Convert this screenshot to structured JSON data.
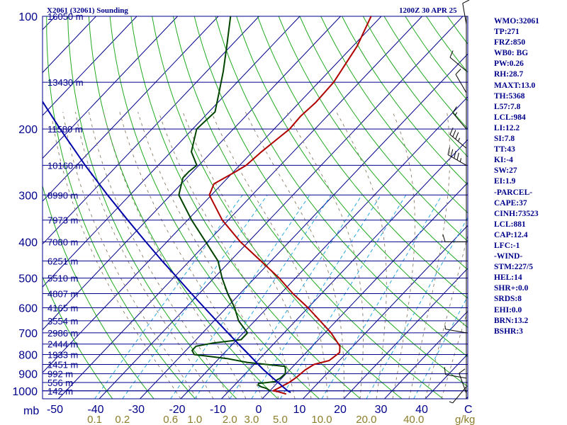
{
  "header": {
    "station": "X2061 (32061) Sounding",
    "time": "1200Z 30 APR 25"
  },
  "indices": [
    "WMO:32061",
    "TP:271",
    "FRZ:850",
    "WB0: BG",
    "PW:0.26",
    "RH:28.7",
    "MAXT:13.0",
    "TH:5368",
    "L57:7.8",
    "LCL:984",
    "LI:12.2",
    "SI:7.8",
    "TT:43",
    "KI:-4",
    "SW:27",
    "EI:1.9",
    "-PARCEL-",
    "CAPE:37",
    "CINH:73523",
    "LCL:881",
    "CAP:12.4",
    "LFC:-1",
    "-WIND-",
    "STM:227/5",
    "HEL:14",
    "SHR+:0.0",
    "SRDS:8",
    "EHI:0.0",
    "BRN:13.2",
    "BSHR:3"
  ],
  "colors": {
    "isobar": "#00008b",
    "isotherm": "#00008b",
    "dry_adiabat": "#22aa22",
    "moist_adiabat": "#8b7d6b",
    "mixing_ratio": "#2ba8e0",
    "temperature": "#b00000",
    "dewpoint": "#004400",
    "parcel": "#0000aa",
    "wind": "#000000"
  },
  "chart_data": {
    "type": "skew-t",
    "pressure_axis_label": "mb",
    "pressure_ticks": [
      100,
      200,
      300,
      400,
      500,
      600,
      700,
      800,
      900,
      1000
    ],
    "height_labels": [
      {
        "p": 100,
        "text": "16050 m"
      },
      {
        "p": 150,
        "text": "13430 m"
      },
      {
        "p": 200,
        "text": "11580 m"
      },
      {
        "p": 250,
        "text": "10160 m"
      },
      {
        "p": 300,
        "text": "8990 m"
      },
      {
        "p": 350,
        "text": "7973 m"
      },
      {
        "p": 400,
        "text": "7080 m"
      },
      {
        "p": 450,
        "text": "6251 m"
      },
      {
        "p": 500,
        "text": "5510 m"
      },
      {
        "p": 550,
        "text": "4807 m"
      },
      {
        "p": 600,
        "text": "4165 m"
      },
      {
        "p": 650,
        "text": "3554 m"
      },
      {
        "p": 700,
        "text": "2986 m"
      },
      {
        "p": 750,
        "text": "2444 m"
      },
      {
        "p": 800,
        "text": "1933 m"
      },
      {
        "p": 850,
        "text": "1451 m"
      },
      {
        "p": 900,
        "text": "992 m"
      },
      {
        "p": 950,
        "text": "556 m"
      },
      {
        "p": 1000,
        "text": "142 m"
      }
    ],
    "temperature_ticks": [
      -50,
      -40,
      -30,
      -20,
      -10,
      0,
      10,
      20,
      30,
      40
    ],
    "temperature_end_label": "C",
    "mixing_ratio_ticks": [
      0.1,
      0.2,
      0.6,
      1.0,
      2.0,
      3.0,
      5.0,
      10.0,
      20.0,
      40.0
    ],
    "mixing_ratio_labels": [
      "0.1",
      "0.2",
      "0.6",
      "1.0",
      "2.0",
      "3.0",
      "5.0",
      "10.0",
      "20.0",
      "40.0"
    ],
    "mixing_ratio_unit": "g/kg",
    "series": [
      {
        "key": "temperature",
        "p": [
          1020,
          1005,
          1000,
          988,
          950,
          920,
          880,
          850,
          830,
          790,
          760,
          700,
          650,
          600,
          550,
          500,
          450,
          400,
          350,
          300,
          280,
          260,
          250,
          230,
          200,
          185,
          170,
          150,
          120,
          100
        ],
        "t": [
          4.8,
          2.2,
          0.8,
          1.3,
          2.8,
          3.4,
          3.8,
          4.7,
          7.5,
          8.2,
          6.8,
          1.5,
          -4.0,
          -10.0,
          -17.0,
          -24.0,
          -32.5,
          -42.0,
          -51.5,
          -60.5,
          -62.0,
          -59.5,
          -58.4,
          -57.8,
          -56.2,
          -56.5,
          -56.0,
          -56.3,
          -59.0,
          -62.5
        ]
      },
      {
        "key": "dewpoint",
        "p": [
          1000,
          985,
          975,
          965,
          955,
          945,
          935,
          925,
          900,
          880,
          860,
          840,
          820,
          800,
          780,
          760,
          745,
          730,
          700,
          650,
          600,
          550,
          500,
          450,
          400,
          350,
          300,
          270,
          260,
          250,
          230,
          200,
          180,
          160,
          140,
          120,
          100
        ],
        "t": [
          0.1,
          -1.4,
          -3.1,
          -4.2,
          -4.5,
          -0.8,
          -0.8,
          -0.4,
          -0.2,
          -1.0,
          -2.0,
          -12.0,
          -18.0,
          -27.0,
          -28.5,
          -28.5,
          -25.0,
          -19.0,
          -19.0,
          -24.0,
          -28.0,
          -33.0,
          -38.0,
          -43.0,
          -50.5,
          -59.0,
          -68.0,
          -71.0,
          -71.0,
          -70.5,
          -75.0,
          -79.0,
          -78.5,
          -82.0,
          -86.0,
          -91.0,
          -97.0
        ]
      },
      {
        "key": "parcel",
        "p": [
          1010,
          1000,
          980,
          950,
          920,
          900,
          880,
          850,
          800,
          750,
          700,
          650,
          600,
          550,
          500,
          450,
          400,
          350,
          300,
          250,
          200,
          150,
          120
        ],
        "t": [
          5.5,
          4.4,
          2.7,
          0.1,
          -2.6,
          -4.4,
          -6.3,
          -9.0,
          -13.6,
          -18.6,
          -23.8,
          -29.4,
          -35.4,
          -41.9,
          -48.9,
          -56.7,
          -65.2,
          -74.7,
          -85.5,
          -97.9,
          -112.5,
          -130.8,
          -144.0
        ]
      }
    ],
    "wind_barbs": [
      {
        "p": 105,
        "dir": 350,
        "spd": 10
      },
      {
        "p": 140,
        "dir": 310,
        "spd": 10
      },
      {
        "p": 160,
        "dir": 330,
        "spd": 10
      },
      {
        "p": 200,
        "dir": 320,
        "spd": 15
      },
      {
        "p": 225,
        "dir": 310,
        "spd": 35
      },
      {
        "p": 250,
        "dir": 300,
        "spd": 45
      },
      {
        "p": 400,
        "dir": 270,
        "spd": 10
      },
      {
        "p": 700,
        "dir": 280,
        "spd": 5
      },
      {
        "p": 925,
        "dir": 280,
        "spd": 10
      },
      {
        "p": 975,
        "dir": 220,
        "spd": 5
      },
      {
        "p": 1015,
        "dir": 340,
        "spd": 10
      }
    ]
  }
}
